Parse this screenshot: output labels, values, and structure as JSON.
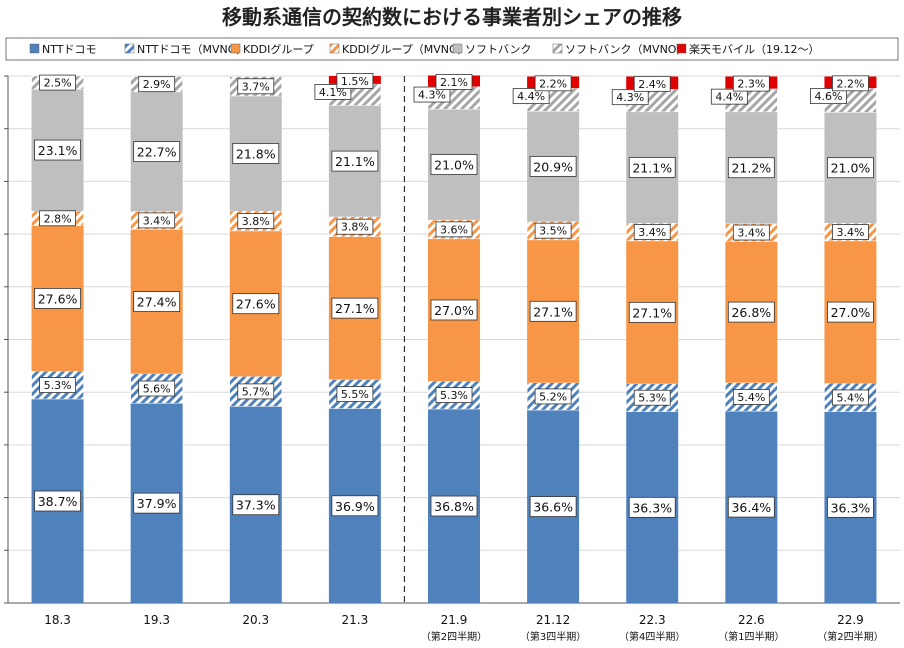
{
  "chart_data": {
    "type": "bar",
    "stacked": true,
    "title": "移動系通信の契約数における事業者別シェアの推移",
    "categories": [
      "18.3",
      "19.3",
      "20.3",
      "21.3",
      "21.9",
      "21.12",
      "22.3",
      "22.6",
      "22.9"
    ],
    "category_sublabels": [
      "",
      "",
      "",
      "",
      "（第2四半期）",
      "（第3四半期）",
      "（第4四半期）",
      "（第1四半期）",
      "（第2四半期）"
    ],
    "ylim": [
      0,
      100
    ],
    "grid": true,
    "legend_position": "top",
    "divider_after_category": "21.3",
    "series": [
      {
        "name": "NTTドコモ",
        "color": "#4f81bd",
        "pattern": "solid",
        "values": [
          38.7,
          37.9,
          37.3,
          36.9,
          36.8,
          36.6,
          36.3,
          36.4,
          36.3
        ]
      },
      {
        "name": "NTTドコモ（MVNO）",
        "color": "#4f81bd",
        "pattern": "hatch",
        "values": [
          5.3,
          5.6,
          5.7,
          5.5,
          5.3,
          5.2,
          5.3,
          5.4,
          5.4
        ]
      },
      {
        "name": "KDDIグループ",
        "color": "#f79646",
        "pattern": "solid",
        "values": [
          27.6,
          27.4,
          27.6,
          27.1,
          27.0,
          27.1,
          27.1,
          26.8,
          27.0
        ]
      },
      {
        "name": "KDDIグループ（MVNO）",
        "color": "#f79646",
        "pattern": "hatch",
        "values": [
          2.8,
          3.4,
          3.8,
          3.8,
          3.6,
          3.5,
          3.4,
          3.4,
          3.4
        ]
      },
      {
        "name": "ソフトバンク",
        "color": "#bfbfbf",
        "pattern": "solid",
        "values": [
          23.1,
          22.7,
          21.8,
          21.1,
          21.0,
          20.9,
          21.1,
          21.2,
          21.0
        ]
      },
      {
        "name": "ソフトバンク（MVNO）",
        "color": "#a6a6a6",
        "pattern": "hatch",
        "values": [
          2.5,
          2.9,
          3.7,
          4.1,
          4.3,
          4.4,
          4.3,
          4.4,
          4.6
        ]
      },
      {
        "name": "楽天モバイル（19.12～）",
        "color": "#e00000",
        "pattern": "solid",
        "values": [
          0,
          0,
          0,
          1.5,
          2.1,
          2.2,
          2.4,
          2.3,
          2.2
        ]
      }
    ]
  }
}
